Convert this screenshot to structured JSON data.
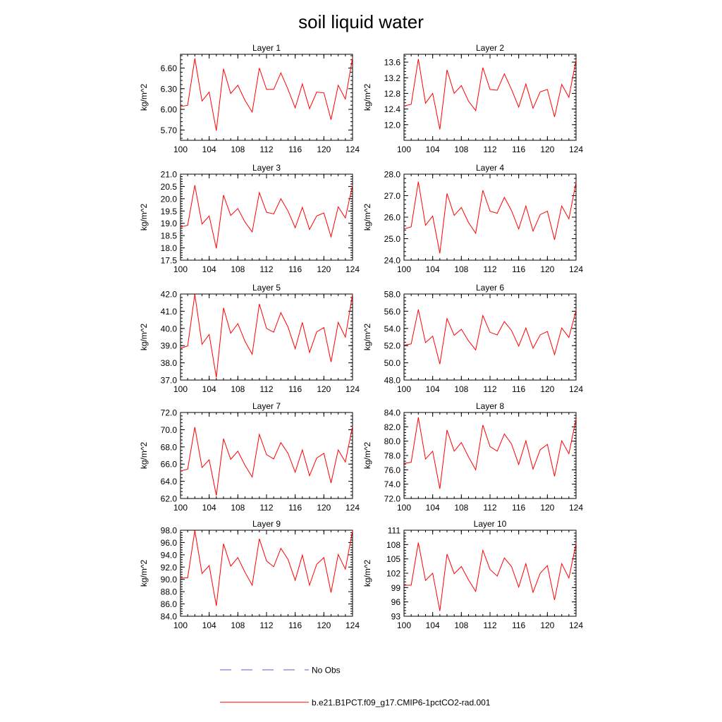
{
  "title": "soil liquid water",
  "legend": [
    {
      "label": "No Obs",
      "color": "#5b5bd6",
      "style": "dashed"
    },
    {
      "label": "b.e21.B1PCT.f09_g17.CMIP6-1pctCO2-rad.001",
      "color": "#ff0000",
      "style": "solid"
    }
  ],
  "chart_data": [
    {
      "type": "line",
      "title": "Layer 1",
      "ylabel": "kg/m^2",
      "xlim": [
        100,
        124
      ],
      "ylim": [
        5.55,
        6.8
      ],
      "xticks": [
        "100",
        "104",
        "108",
        "112",
        "116",
        "120",
        "124"
      ],
      "yticks": [
        "5.70",
        "6.00",
        "6.30",
        "6.60"
      ],
      "x": [
        100,
        101,
        102,
        103,
        104,
        105,
        106,
        107,
        108,
        109,
        110,
        111,
        112,
        113,
        114,
        115,
        116,
        117,
        118,
        119,
        120,
        121,
        122,
        123,
        124
      ],
      "series": [
        {
          "color": "#ff0000",
          "values": [
            6.04,
            6.06,
            6.74,
            6.12,
            6.25,
            5.69,
            6.59,
            6.23,
            6.35,
            6.13,
            5.96,
            6.6,
            6.29,
            6.29,
            6.53,
            6.29,
            6.02,
            6.37,
            6.01,
            6.25,
            6.24,
            5.85,
            6.35,
            6.15,
            6.75
          ]
        }
      ]
    },
    {
      "type": "line",
      "title": "Layer 2",
      "ylabel": "kg/m^2",
      "xlim": [
        100,
        124
      ],
      "ylim": [
        11.6,
        13.8
      ],
      "xticks": [
        "100",
        "104",
        "108",
        "112",
        "116",
        "120",
        "124"
      ],
      "yticks": [
        "12.0",
        "12.4",
        "12.8",
        "13.2",
        "13.6"
      ],
      "x": [
        100,
        101,
        102,
        103,
        104,
        105,
        106,
        107,
        108,
        109,
        110,
        111,
        112,
        113,
        114,
        115,
        116,
        117,
        118,
        119,
        120,
        121,
        122,
        123,
        124
      ],
      "series": [
        {
          "color": "#ff0000",
          "values": [
            12.48,
            12.52,
            13.68,
            12.55,
            12.8,
            11.88,
            13.4,
            12.8,
            13.0,
            12.6,
            12.36,
            13.46,
            12.9,
            12.88,
            13.3,
            12.9,
            12.45,
            13.04,
            12.42,
            12.84,
            12.9,
            12.2,
            13.03,
            12.7,
            13.66
          ]
        }
      ]
    },
    {
      "type": "line",
      "title": "Layer 3",
      "ylabel": "kg/m^2",
      "xlim": [
        100,
        124
      ],
      "ylim": [
        17.5,
        21.0
      ],
      "xticks": [
        "100",
        "104",
        "108",
        "112",
        "116",
        "120",
        "124"
      ],
      "yticks": [
        "17.5",
        "18.0",
        "18.5",
        "19.0",
        "19.5",
        "20.0",
        "20.5",
        "21.0"
      ],
      "x": [
        100,
        101,
        102,
        103,
        104,
        105,
        106,
        107,
        108,
        109,
        110,
        111,
        112,
        113,
        114,
        115,
        116,
        117,
        118,
        119,
        120,
        121,
        122,
        123,
        124
      ],
      "series": [
        {
          "color": "#ff0000",
          "values": [
            18.85,
            18.92,
            20.55,
            18.97,
            19.3,
            17.98,
            20.15,
            19.32,
            19.6,
            19.05,
            18.65,
            20.25,
            19.45,
            19.38,
            20.0,
            19.5,
            18.82,
            19.65,
            18.75,
            19.3,
            19.42,
            18.45,
            19.67,
            19.22,
            20.55
          ]
        }
      ]
    },
    {
      "type": "line",
      "title": "Layer 4",
      "ylabel": "kg/m^2",
      "xlim": [
        100,
        124
      ],
      "ylim": [
        24.0,
        28.0
      ],
      "xticks": [
        "100",
        "104",
        "108",
        "112",
        "116",
        "120",
        "124"
      ],
      "yticks": [
        "24.0",
        "25.0",
        "26.0",
        "27.0",
        "28.0"
      ],
      "x": [
        100,
        101,
        102,
        103,
        104,
        105,
        106,
        107,
        108,
        109,
        110,
        111,
        112,
        113,
        114,
        115,
        116,
        117,
        118,
        119,
        120,
        121,
        122,
        123,
        124
      ],
      "series": [
        {
          "color": "#ff0000",
          "values": [
            25.45,
            25.55,
            27.65,
            25.62,
            26.05,
            24.32,
            27.1,
            26.08,
            26.45,
            25.75,
            25.25,
            27.25,
            26.28,
            26.18,
            26.92,
            26.3,
            25.45,
            26.52,
            25.35,
            26.12,
            26.28,
            24.95,
            26.52,
            25.92,
            27.62
          ]
        }
      ]
    },
    {
      "type": "line",
      "title": "Layer 5",
      "ylabel": "kg/m^2",
      "xlim": [
        100,
        124
      ],
      "ylim": [
        37.0,
        42.0
      ],
      "xticks": [
        "100",
        "104",
        "108",
        "112",
        "116",
        "120",
        "124"
      ],
      "yticks": [
        "37.0",
        "38.0",
        "39.0",
        "40.0",
        "41.0",
        "42.0"
      ],
      "x": [
        100,
        101,
        102,
        103,
        104,
        105,
        106,
        107,
        108,
        109,
        110,
        111,
        112,
        113,
        114,
        115,
        116,
        117,
        118,
        119,
        120,
        121,
        122,
        123,
        124
      ],
      "series": [
        {
          "color": "#ff0000",
          "values": [
            38.85,
            38.98,
            41.98,
            39.08,
            39.65,
            37.15,
            41.2,
            39.72,
            40.28,
            39.25,
            38.5,
            41.42,
            40.0,
            39.78,
            40.92,
            40.08,
            38.82,
            40.35,
            38.6,
            39.8,
            40.05,
            38.05,
            40.35,
            39.5,
            41.98
          ]
        }
      ]
    },
    {
      "type": "line",
      "title": "Layer 6",
      "ylabel": "kg/m^2",
      "xlim": [
        100,
        124
      ],
      "ylim": [
        48.0,
        58.0
      ],
      "xticks": [
        "100",
        "104",
        "108",
        "112",
        "116",
        "120",
        "124"
      ],
      "yticks": [
        "48.0",
        "50.0",
        "52.0",
        "54.0",
        "56.0",
        "58.0"
      ],
      "x": [
        100,
        101,
        102,
        103,
        104,
        105,
        106,
        107,
        108,
        109,
        110,
        111,
        112,
        113,
        114,
        115,
        116,
        117,
        118,
        119,
        120,
        121,
        122,
        123,
        124
      ],
      "series": [
        {
          "color": "#ff0000",
          "values": [
            52.05,
            52.2,
            56.2,
            52.35,
            53.1,
            49.85,
            55.15,
            53.2,
            53.9,
            52.55,
            51.5,
            55.5,
            53.55,
            53.25,
            54.8,
            53.75,
            51.95,
            54.05,
            51.7,
            53.25,
            53.65,
            50.95,
            54.05,
            52.95,
            56.1
          ]
        }
      ]
    },
    {
      "type": "line",
      "title": "Layer 7",
      "ylabel": "kg/m^2",
      "xlim": [
        100,
        124
      ],
      "ylim": [
        62.0,
        72.0
      ],
      "xticks": [
        "100",
        "104",
        "108",
        "112",
        "116",
        "120",
        "124"
      ],
      "yticks": [
        "62.0",
        "64.0",
        "66.0",
        "68.0",
        "70.0",
        "72.0"
      ],
      "x": [
        100,
        101,
        102,
        103,
        104,
        105,
        106,
        107,
        108,
        109,
        110,
        111,
        112,
        113,
        114,
        115,
        116,
        117,
        118,
        119,
        120,
        121,
        122,
        123,
        124
      ],
      "series": [
        {
          "color": "#ff0000",
          "values": [
            65.2,
            65.4,
            70.3,
            65.6,
            66.5,
            62.35,
            68.95,
            66.55,
            67.5,
            65.85,
            64.5,
            69.45,
            67.1,
            66.6,
            68.5,
            67.25,
            65.05,
            67.65,
            64.65,
            66.7,
            67.25,
            63.8,
            67.65,
            66.25,
            70.4
          ]
        }
      ]
    },
    {
      "type": "line",
      "title": "Layer 8",
      "ylabel": "kg/m^2",
      "xlim": [
        100,
        124
      ],
      "ylim": [
        72.0,
        84.0
      ],
      "xticks": [
        "100",
        "104",
        "108",
        "112",
        "116",
        "120",
        "124"
      ],
      "yticks": [
        "72.0",
        "74.0",
        "76.0",
        "78.0",
        "80.0",
        "82.0",
        "84.0"
      ],
      "x": [
        100,
        101,
        102,
        103,
        104,
        105,
        106,
        107,
        108,
        109,
        110,
        111,
        112,
        113,
        114,
        115,
        116,
        117,
        118,
        119,
        120,
        121,
        122,
        123,
        124
      ],
      "series": [
        {
          "color": "#ff0000",
          "values": [
            76.9,
            77.05,
            83.3,
            77.5,
            78.6,
            73.35,
            81.55,
            78.6,
            79.8,
            77.8,
            76.0,
            82.25,
            79.25,
            78.6,
            81.0,
            79.6,
            76.75,
            80.05,
            76.1,
            78.8,
            79.55,
            75.1,
            80.05,
            78.25,
            83.1
          ]
        }
      ]
    },
    {
      "type": "line",
      "title": "Layer 9",
      "ylabel": "kg/m^2",
      "xlim": [
        100,
        124
      ],
      "ylim": [
        84.0,
        98.0
      ],
      "xticks": [
        "100",
        "104",
        "108",
        "112",
        "116",
        "120",
        "124"
      ],
      "yticks": [
        "84.0",
        "86.0",
        "88.0",
        "90.0",
        "92.0",
        "94.0",
        "96.0",
        "98.0"
      ],
      "x": [
        100,
        101,
        102,
        103,
        104,
        105,
        106,
        107,
        108,
        109,
        110,
        111,
        112,
        113,
        114,
        115,
        116,
        117,
        118,
        119,
        120,
        121,
        122,
        123,
        124
      ],
      "series": [
        {
          "color": "#ff0000",
          "values": [
            90.2,
            90.25,
            97.95,
            90.95,
            92.25,
            85.7,
            95.8,
            92.15,
            93.55,
            91.15,
            89.05,
            96.6,
            93.0,
            92.05,
            95.05,
            93.25,
            89.85,
            93.95,
            89.05,
            92.45,
            93.55,
            87.85,
            94.05,
            91.65,
            97.9
          ]
        }
      ]
    },
    {
      "type": "line",
      "title": "Layer 10",
      "ylabel": "kg/m^2",
      "xlim": [
        100,
        124
      ],
      "ylim": [
        93,
        111
      ],
      "xticks": [
        "100",
        "104",
        "108",
        "112",
        "116",
        "120",
        "124"
      ],
      "yticks": [
        "93",
        "96",
        "99",
        "102",
        "105",
        "108",
        "111"
      ],
      "x": [
        100,
        101,
        102,
        103,
        104,
        105,
        106,
        107,
        108,
        109,
        110,
        111,
        112,
        113,
        114,
        115,
        116,
        117,
        118,
        119,
        120,
        121,
        122,
        123,
        124
      ],
      "series": [
        {
          "color": "#ff0000",
          "values": [
            99.5,
            99.5,
            108.4,
            100.5,
            102.0,
            94.1,
            106.0,
            101.9,
            103.4,
            100.6,
            98.2,
            106.8,
            102.8,
            101.4,
            105.2,
            103.4,
            99.1,
            104.0,
            98.0,
            102.0,
            103.6,
            96.4,
            104.0,
            101.0,
            108.2
          ]
        }
      ]
    }
  ]
}
